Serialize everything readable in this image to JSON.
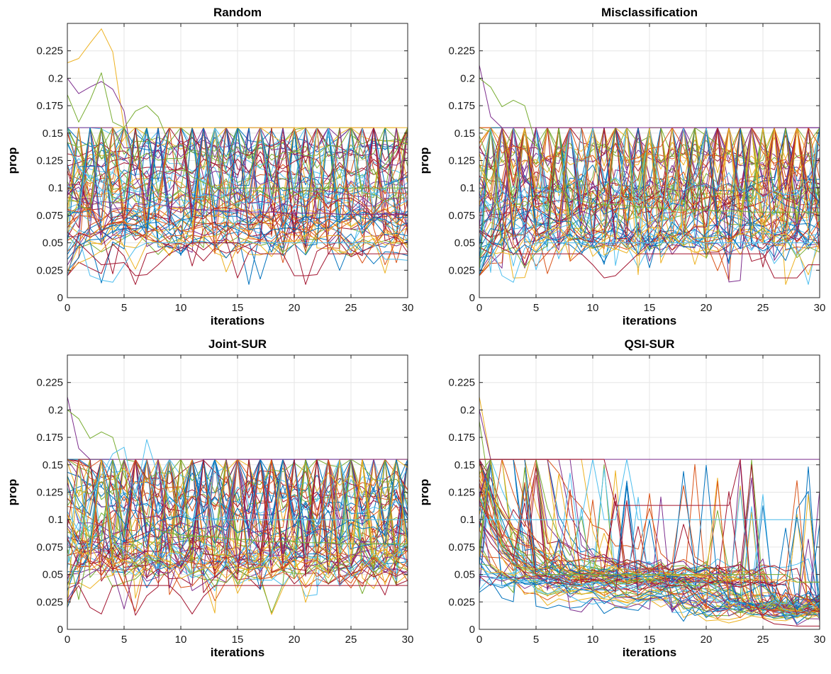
{
  "figure": {
    "palette": [
      "#0072BD",
      "#D95319",
      "#EDB120",
      "#7E2F8E",
      "#77AC30",
      "#4DBEEE",
      "#A2142F"
    ]
  },
  "chart_data": [
    {
      "type": "line",
      "title": "Random",
      "xlabel": "iterations",
      "ylabel": "prop",
      "xlim": [
        0,
        30
      ],
      "ylim": [
        0,
        0.25
      ],
      "xticks": [
        0,
        5,
        10,
        15,
        20,
        25,
        30
      ],
      "xtick_labels": [
        "0",
        "5",
        "10",
        "15",
        "20",
        "25",
        "30"
      ],
      "yticks": [
        0,
        0.025,
        0.05,
        0.075,
        0.1,
        0.125,
        0.15,
        0.175,
        0.2,
        0.225
      ],
      "ytick_labels": [
        "0",
        "0.025",
        "0.05",
        "0.075",
        "0.1",
        "0.125",
        "0.15",
        "0.175",
        "0.2",
        "0.225"
      ],
      "grid": true,
      "series_count": 70,
      "series": [
        {
          "y": [
            0.214,
            0.218,
            0.232,
            0.245,
            0.224,
            0.155,
            0.155,
            0.155,
            0.155,
            0.155,
            0.155,
            0.155,
            0.155,
            0.155,
            0.155,
            0.155,
            0.155,
            0.155,
            0.155,
            0.155,
            0.155,
            0.155,
            0.155,
            0.155,
            0.155,
            0.155,
            0.155,
            0.155,
            0.155,
            0.155,
            0.155
          ]
        },
        {
          "y": [
            0.2,
            0.186,
            0.192,
            0.197,
            0.19,
            0.17,
            0.11,
            0.09,
            0.085,
            0.083,
            0.082,
            0.081,
            0.08,
            0.08,
            0.079,
            0.079,
            0.078,
            0.078,
            0.078,
            0.077,
            0.077,
            0.077,
            0.077,
            0.077,
            0.076,
            0.076,
            0.076,
            0.076,
            0.076,
            0.076,
            0.076
          ]
        },
        {
          "y": [
            0.185,
            0.16,
            0.18,
            0.205,
            0.16,
            0.155,
            0.17,
            0.175,
            0.165,
            0.14,
            0.12,
            0.11,
            0.105,
            0.1,
            0.1,
            0.1,
            0.1,
            0.1,
            0.1,
            0.1,
            0.1,
            0.1,
            0.1,
            0.1,
            0.1,
            0.1,
            0.1,
            0.1,
            0.1,
            0.1,
            0.1
          ]
        },
        {
          "y": [
            0.02,
            0.055,
            0.02,
            0.016,
            0.014,
            0.03,
            0.045,
            0.05,
            0.05,
            0.05,
            0.05,
            0.05,
            0.05,
            0.05,
            0.05,
            0.05,
            0.05,
            0.05,
            0.05,
            0.05,
            0.05,
            0.05,
            0.05,
            0.05,
            0.05,
            0.05,
            0.05,
            0.05,
            0.035,
            0.035,
            0.034
          ]
        },
        {
          "y": [
            0.06,
            0.05,
            0.04,
            0.03,
            0.031,
            0.032,
            0.02,
            0.021,
            0.03,
            0.04,
            0.045,
            0.05,
            0.05,
            0.05,
            0.05,
            0.05,
            0.045,
            0.04,
            0.04,
            0.04,
            0.02,
            0.02,
            0.021,
            0.04,
            0.04,
            0.04,
            0.04,
            0.04,
            0.04,
            0.04,
            0.04
          ]
        }
      ]
    },
    {
      "type": "line",
      "title": "Misclassification",
      "xlabel": "iterations",
      "ylabel": "prop",
      "xlim": [
        0,
        30
      ],
      "ylim": [
        0,
        0.25
      ],
      "xticks": [
        0,
        5,
        10,
        15,
        20,
        25,
        30
      ],
      "xtick_labels": [
        "0",
        "5",
        "10",
        "15",
        "20",
        "25",
        "30"
      ],
      "yticks": [
        0,
        0.025,
        0.05,
        0.075,
        0.1,
        0.125,
        0.15,
        0.175,
        0.2,
        0.225
      ],
      "ytick_labels": [
        "0",
        "0.025",
        "0.05",
        "0.075",
        "0.1",
        "0.125",
        "0.15",
        "0.175",
        "0.2",
        "0.225"
      ],
      "grid": true,
      "series_count": 70,
      "series": [
        {
          "y": [
            0.212,
            0.165,
            0.155,
            0.155,
            0.155,
            0.155,
            0.155,
            0.155,
            0.155,
            0.155,
            0.155,
            0.155,
            0.155,
            0.155,
            0.155,
            0.155,
            0.155,
            0.155,
            0.155,
            0.155,
            0.155,
            0.155,
            0.155,
            0.155,
            0.155,
            0.155,
            0.155,
            0.155,
            0.155,
            0.155,
            0.155
          ]
        },
        {
          "y": [
            0.2,
            0.192,
            0.174,
            0.18,
            0.175,
            0.14,
            0.12,
            0.1,
            0.09,
            0.088,
            0.086,
            0.085,
            0.085,
            0.084,
            0.083,
            0.082,
            0.082,
            0.08,
            0.08,
            0.08,
            0.08,
            0.079,
            0.079,
            0.079,
            0.078,
            0.078,
            0.078,
            0.078,
            0.078,
            0.078,
            0.078
          ]
        },
        {
          "y": [
            0.025,
            0.05,
            0.02,
            0.014,
            0.045,
            0.05,
            0.05,
            0.05,
            0.05,
            0.05,
            0.05,
            0.05,
            0.05,
            0.05,
            0.05,
            0.05,
            0.05,
            0.05,
            0.05,
            0.05,
            0.05,
            0.05,
            0.05,
            0.05,
            0.05,
            0.05,
            0.05,
            0.05,
            0.05,
            0.05,
            0.05
          ]
        },
        {
          "y": [
            0.06,
            0.05,
            0.045,
            0.04,
            0.04,
            0.04,
            0.04,
            0.04,
            0.04,
            0.04,
            0.03,
            0.018,
            0.02,
            0.03,
            0.04,
            0.04,
            0.04,
            0.04,
            0.04,
            0.04,
            0.04,
            0.04,
            0.04,
            0.04,
            0.04,
            0.04,
            0.018,
            0.018,
            0.018,
            0.03,
            0.03
          ]
        }
      ]
    },
    {
      "type": "line",
      "title": "Joint-SUR",
      "xlabel": "iterations",
      "ylabel": "prop",
      "xlim": [
        0,
        30
      ],
      "ylim": [
        0,
        0.25
      ],
      "xticks": [
        0,
        5,
        10,
        15,
        20,
        25,
        30
      ],
      "xtick_labels": [
        "0",
        "5",
        "10",
        "15",
        "20",
        "25",
        "30"
      ],
      "yticks": [
        0,
        0.025,
        0.05,
        0.075,
        0.1,
        0.125,
        0.15,
        0.175,
        0.2,
        0.225
      ],
      "ytick_labels": [
        "0",
        "0.025",
        "0.05",
        "0.075",
        "0.1",
        "0.125",
        "0.15",
        "0.175",
        "0.2",
        "0.225"
      ],
      "grid": true,
      "series_count": 70,
      "series": [
        {
          "y": [
            0.212,
            0.165,
            0.155,
            0.155,
            0.155,
            0.155,
            0.155,
            0.155,
            0.155,
            0.155,
            0.155,
            0.155,
            0.155,
            0.155,
            0.155,
            0.155,
            0.155,
            0.155,
            0.155,
            0.155,
            0.155,
            0.155,
            0.155,
            0.155,
            0.155,
            0.155,
            0.155,
            0.155,
            0.155,
            0.155,
            0.155
          ]
        },
        {
          "y": [
            0.2,
            0.192,
            0.174,
            0.18,
            0.175,
            0.14,
            0.12,
            0.1,
            0.09,
            0.088,
            0.086,
            0.085,
            0.085,
            0.084,
            0.083,
            0.082,
            0.082,
            0.08,
            0.08,
            0.08,
            0.08,
            0.079,
            0.079,
            0.079,
            0.078,
            0.078,
            0.078,
            0.078,
            0.078,
            0.078,
            0.078
          ]
        },
        {
          "y": [
            0.06,
            0.08,
            0.12,
            0.14,
            0.16,
            0.166,
            0.12,
            0.173,
            0.14,
            0.12,
            0.11,
            0.1,
            0.1,
            0.1,
            0.1,
            0.1,
            0.1,
            0.1,
            0.1,
            0.1,
            0.1,
            0.1,
            0.1,
            0.1,
            0.1,
            0.1,
            0.1,
            0.1,
            0.1,
            0.1,
            0.1
          ]
        },
        {
          "y": [
            0.025,
            0.04,
            0.02,
            0.014,
            0.04,
            0.04,
            0.04,
            0.04,
            0.04,
            0.04,
            0.03,
            0.014,
            0.03,
            0.04,
            0.04,
            0.04,
            0.04,
            0.04,
            0.04,
            0.04,
            0.04,
            0.04,
            0.04,
            0.04,
            0.04,
            0.04,
            0.04,
            0.04,
            0.04,
            0.04,
            0.04
          ]
        }
      ]
    },
    {
      "type": "line",
      "title": "QSI-SUR",
      "xlabel": "iterations",
      "ylabel": "prop",
      "xlim": [
        0,
        30
      ],
      "ylim": [
        0,
        0.25
      ],
      "xticks": [
        0,
        5,
        10,
        15,
        20,
        25,
        30
      ],
      "xtick_labels": [
        "0",
        "5",
        "10",
        "15",
        "20",
        "25",
        "30"
      ],
      "yticks": [
        0,
        0.025,
        0.05,
        0.075,
        0.1,
        0.125,
        0.15,
        0.175,
        0.2,
        0.225
      ],
      "ytick_labels": [
        "0",
        "0.025",
        "0.05",
        "0.075",
        "0.1",
        "0.125",
        "0.15",
        "0.175",
        "0.2",
        "0.225"
      ],
      "grid": true,
      "series_count": 70,
      "series": [
        {
          "y": [
            0.212,
            0.155,
            0.155,
            0.155,
            0.155,
            0.155,
            0.155,
            0.155,
            0.155,
            0.155,
            0.09,
            0.06,
            0.055,
            0.055,
            0.05,
            0.05,
            0.05,
            0.05,
            0.05,
            0.05,
            0.05,
            0.05,
            0.045,
            0.045,
            0.045,
            0.045,
            0.045,
            0.045,
            0.043,
            0.043,
            0.043
          ]
        },
        {
          "y": [
            0.2,
            0.155,
            0.155,
            0.155,
            0.155,
            0.155,
            0.155,
            0.155,
            0.155,
            0.155,
            0.155,
            0.155,
            0.155,
            0.155,
            0.155,
            0.155,
            0.155,
            0.155,
            0.155,
            0.155,
            0.155,
            0.155,
            0.155,
            0.155,
            0.155,
            0.155,
            0.155,
            0.155,
            0.155,
            0.155,
            0.155
          ]
        },
        {
          "y": [
            0.19,
            0.12,
            0.08,
            0.06,
            0.055,
            0.05,
            0.05,
            0.05,
            0.05,
            0.05,
            0.05,
            0.05,
            0.05,
            0.05,
            0.05,
            0.05,
            0.05,
            0.05,
            0.05,
            0.05,
            0.05,
            0.05,
            0.05,
            0.05,
            0.05,
            0.05,
            0.05,
            0.05,
            0.043,
            0.043,
            0.043
          ]
        },
        {
          "y": [
            0.1,
            0.1,
            0.1,
            0.1,
            0.1,
            0.1,
            0.1,
            0.1,
            0.1,
            0.1,
            0.155,
            0.1,
            0.1,
            0.155,
            0.1,
            0.1,
            0.1,
            0.1,
            0.1,
            0.1,
            0.1,
            0.1,
            0.1,
            0.1,
            0.1,
            0.1,
            0.1,
            0.1,
            0.1,
            0.1,
            0.1
          ]
        },
        {
          "y": [
            0.155,
            0.155,
            0.155,
            0.155,
            0.155,
            0.155,
            0.155,
            0.155,
            0.155,
            0.155,
            0.155,
            0.155,
            0.113,
            0.113,
            0.113,
            0.113,
            0.113,
            0.113,
            0.113,
            0.113,
            0.113,
            0.113,
            0.113,
            0.155,
            0.03,
            0.01,
            0.005,
            0.004,
            0.003,
            0.003,
            0.003
          ]
        }
      ]
    }
  ]
}
